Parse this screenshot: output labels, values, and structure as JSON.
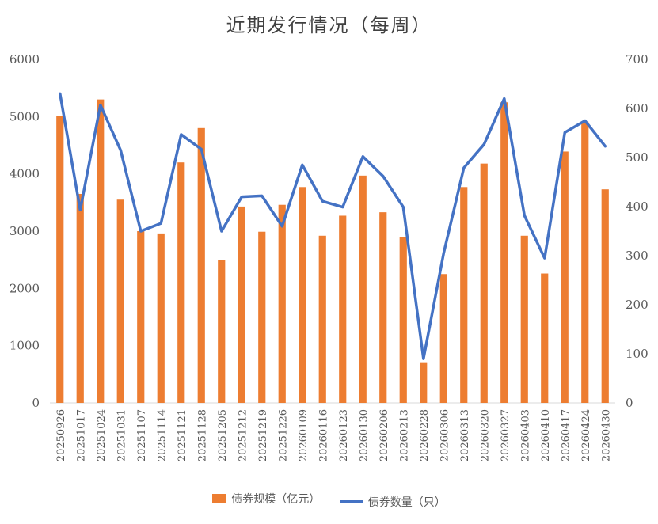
{
  "chart_data": {
    "type": "bar+line",
    "title": "近期发行情况（每周）",
    "categories": [
      "20250926",
      "20251017",
      "20251024",
      "20251031",
      "20251107",
      "20251114",
      "20251121",
      "20251128",
      "20251205",
      "20251212",
      "20251219",
      "20251226",
      "20260109",
      "20260116",
      "20260123",
      "20260130",
      "20260206",
      "20260213",
      "20260228",
      "20260306",
      "20260313",
      "20260320",
      "20260327",
      "20260403",
      "20260410",
      "20260417",
      "20260424",
      "20260430"
    ],
    "series": [
      {
        "name": "债券规模（亿元）",
        "type": "bar",
        "axis": "left",
        "values": [
          5010,
          3650,
          5300,
          3550,
          3000,
          2960,
          4200,
          4800,
          2500,
          3430,
          2990,
          3460,
          3770,
          2920,
          3270,
          3970,
          3330,
          2890,
          710,
          2250,
          3770,
          4180,
          5250,
          2920,
          2260,
          4390,
          4910,
          3730
        ]
      },
      {
        "name": "债券数量（只）",
        "type": "line",
        "axis": "right",
        "values": [
          630,
          393,
          607,
          515,
          350,
          366,
          547,
          517,
          350,
          420,
          422,
          360,
          485,
          411,
          399,
          502,
          462,
          399,
          90,
          305,
          479,
          527,
          620,
          382,
          295,
          551,
          575,
          523
        ]
      }
    ],
    "ylim_left": [
      0,
      6000
    ],
    "ylim_right": [
      0,
      700
    ],
    "yticks_left": [
      "0",
      "1000",
      "2000",
      "3000",
      "4000",
      "5000",
      "6000"
    ],
    "yticks_right": [
      "0",
      "100",
      "200",
      "300",
      "400",
      "500",
      "600",
      "700"
    ],
    "colors": {
      "bar": "#ED7D31",
      "line": "#4472C4"
    },
    "grid": false,
    "legend_position": "bottom"
  }
}
